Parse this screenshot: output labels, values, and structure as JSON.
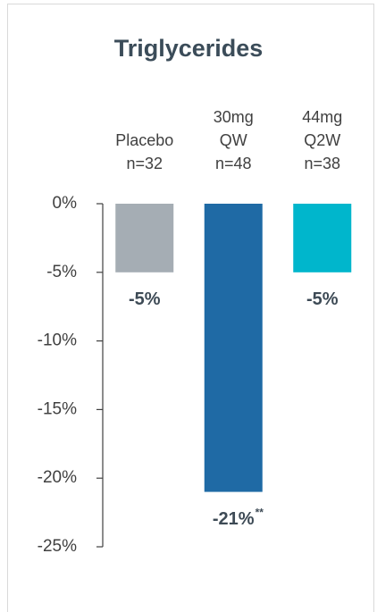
{
  "chart_data": {
    "type": "bar",
    "title": "Triglycerides",
    "categories": [
      [
        "Placebo",
        "n=32"
      ],
      [
        "30mg",
        "QW",
        "n=48"
      ],
      [
        "44mg",
        "Q2W",
        "n=38"
      ]
    ],
    "values": [
      -5,
      -21,
      -5
    ],
    "value_labels": [
      "-5%",
      "-21%",
      "-5%"
    ],
    "annotations": [
      {
        "category": 1,
        "text": "**"
      }
    ],
    "colors": [
      "#a5adb4",
      "#1f6aa5",
      "#00b6cc"
    ],
    "ylim": [
      -25,
      0
    ],
    "yticks": [
      {
        "value": 0,
        "label": "0%"
      },
      {
        "value": -5,
        "label": "-5%"
      },
      {
        "value": -10,
        "label": "-10%"
      },
      {
        "value": -15,
        "label": "-15%"
      },
      {
        "value": -20,
        "label": "-20%"
      },
      {
        "value": -25,
        "label": "-25%"
      }
    ],
    "grid": false
  }
}
